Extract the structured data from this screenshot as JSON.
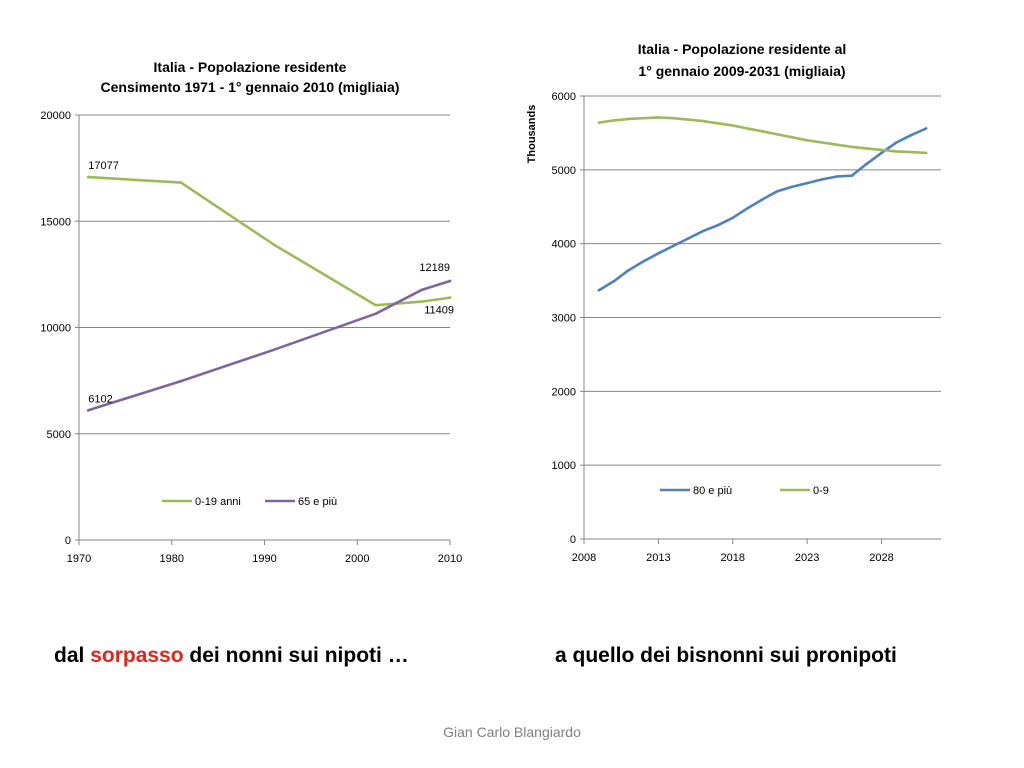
{
  "chart_data": [
    {
      "type": "line",
      "title": [
        "Italia - Popolazione residente",
        "Censimento 1971 - 1° gennaio 2010 (migliaia)"
      ],
      "xlim": [
        1970,
        2010
      ],
      "ylim": [
        0,
        20000
      ],
      "xticks": [
        1970,
        1980,
        1990,
        2000,
        2010
      ],
      "yticks": [
        0,
        5000,
        10000,
        15000,
        20000
      ],
      "ylabel": "",
      "grid": "horizontal",
      "legend": "bottom-center",
      "series": [
        {
          "name": "0-19 anni",
          "color": "#9bbb59",
          "x": [
            1971,
            1981,
            1991,
            2002,
            2007,
            2010
          ],
          "y": [
            17077,
            16820,
            13900,
            11050,
            11220,
            11409
          ]
        },
        {
          "name": "65 e più",
          "color": "#8064a2",
          "x": [
            1971,
            1981,
            1991,
            2002,
            2007,
            2010
          ],
          "y": [
            6102,
            7480,
            8950,
            10650,
            11780,
            12189
          ]
        }
      ],
      "data_labels": [
        {
          "text": "17077",
          "x": 1971,
          "y": 17077,
          "pos": "above"
        },
        {
          "text": "6102",
          "x": 1971,
          "y": 6102,
          "pos": "above"
        },
        {
          "text": "12189",
          "x": 2010,
          "y": 12189,
          "pos": "above-left"
        },
        {
          "text": "11409",
          "x": 2010,
          "y": 11409,
          "pos": "below-left"
        }
      ]
    },
    {
      "type": "line",
      "title": [
        "Italia - Popolazione residente al",
        "1° gennaio 2009-2031 (migliaia)"
      ],
      "xlim": [
        2008,
        2032
      ],
      "ylim": [
        0,
        6000
      ],
      "xticks": [
        2008,
        2013,
        2018,
        2023,
        2028
      ],
      "yticks": [
        0,
        1000,
        2000,
        3000,
        4000,
        5000,
        6000
      ],
      "ylabel": "Thousands",
      "grid": "horizontal",
      "legend": "center",
      "series": [
        {
          "name": "80 e più",
          "color": "#4f81bd",
          "x": [
            2009,
            2010,
            2011,
            2012,
            2013,
            2014,
            2015,
            2016,
            2017,
            2018,
            2019,
            2020,
            2021,
            2022,
            2023,
            2024,
            2025,
            2026,
            2027,
            2028,
            2029,
            2030,
            2031
          ],
          "y": [
            3370,
            3490,
            3640,
            3760,
            3870,
            3970,
            4070,
            4170,
            4250,
            4350,
            4480,
            4600,
            4710,
            4770,
            4820,
            4870,
            4910,
            4920,
            5080,
            5230,
            5370,
            5470,
            5560
          ]
        },
        {
          "name": "0-9",
          "color": "#9bbb59",
          "x": [
            2009,
            2010,
            2011,
            2012,
            2013,
            2014,
            2015,
            2016,
            2017,
            2018,
            2019,
            2020,
            2021,
            2022,
            2023,
            2024,
            2025,
            2026,
            2027,
            2028,
            2029,
            2030,
            2031
          ],
          "y": [
            5640,
            5670,
            5690,
            5700,
            5710,
            5700,
            5680,
            5660,
            5630,
            5600,
            5560,
            5520,
            5480,
            5440,
            5400,
            5370,
            5340,
            5310,
            5290,
            5270,
            5250,
            5240,
            5230
          ]
        }
      ]
    }
  ],
  "captions": {
    "left_pre": "dal ",
    "left_highlight": "sorpasso",
    "left_post": " dei nonni sui nipoti …",
    "right": "a quello dei bisnonni sui pronipoti"
  },
  "footer": "Gian Carlo Blangiardo"
}
